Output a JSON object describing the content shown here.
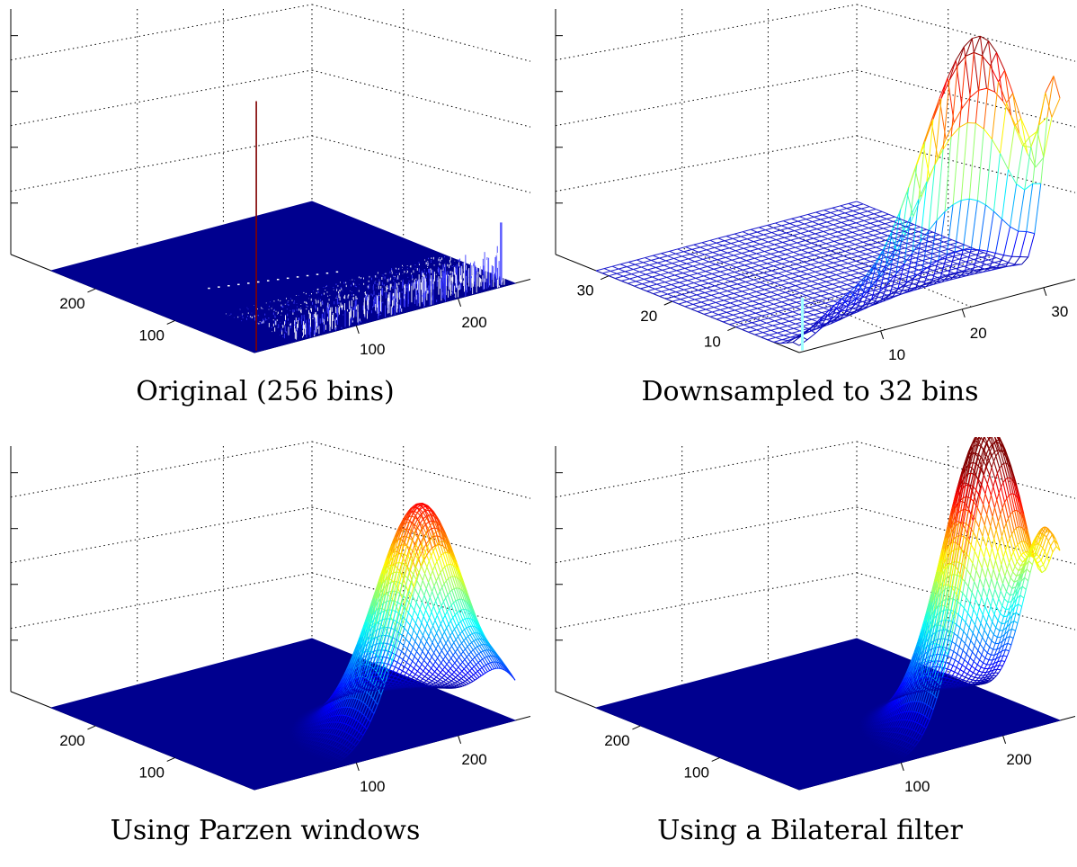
{
  "figure": {
    "colors": {
      "base": "#00008f",
      "low": "#0000ff",
      "mid": "#00ffff",
      "high": "#ffff00",
      "peak": "#800000",
      "grid": "#000000"
    }
  },
  "chart_data": [
    {
      "type": "surface",
      "caption": "Original (256 bins)",
      "render": "spiky",
      "bins": 256,
      "x_axis_ticks": [
        "100",
        "200"
      ],
      "y_axis_ticks": [
        "100",
        "200"
      ],
      "features": "flat near-zero histogram with a tall thin spike near low x and a cluster of small spikes toward high x/low y, plus a narrow peak at the far x edge",
      "grid": true
    },
    {
      "type": "surface",
      "caption": "Downsampled to 32 bins",
      "render": "mesh",
      "bins": 32,
      "x_axis_ticks": [
        "10",
        "20",
        "30"
      ],
      "y_axis_ticks": [
        "10",
        "20",
        "30"
      ],
      "features": "coarse mesh; mass concentrated at low y, rising with x to a maximum near x≈24",
      "grid": true
    },
    {
      "type": "surface",
      "caption": "Using Parzen windows",
      "render": "smooth",
      "bins": 256,
      "x_axis_ticks": [
        "100",
        "200"
      ],
      "y_axis_ticks": [
        "100",
        "200"
      ],
      "features": "smooth single peak near high x, low y",
      "grid": true
    },
    {
      "type": "surface",
      "caption": "Using a Bilateral filter",
      "render": "smooth",
      "bins": 256,
      "x_axis_ticks": [
        "100",
        "200"
      ],
      "y_axis_ticks": [
        "100",
        "200"
      ],
      "features": "smooth taller peak near high x, low y, with a secondary rise at the far x edge",
      "grid": true
    }
  ]
}
